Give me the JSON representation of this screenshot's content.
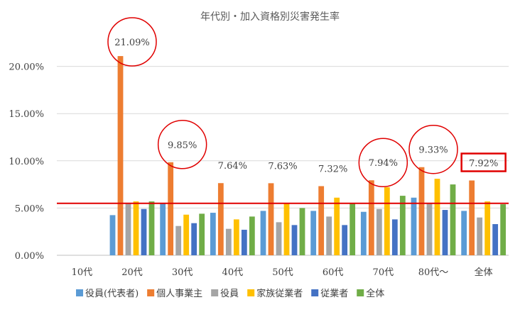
{
  "chart_data": {
    "type": "bar",
    "title": "年代別・加入資格別災害発生率",
    "xlabel": "",
    "ylabel": "",
    "ylim": [
      0,
      0.25
    ],
    "yticks": [
      "0.00%",
      "5.00%",
      "10.00%",
      "15.00%",
      "20.00%"
    ],
    "ytick_values": [
      0,
      0.05,
      0.1,
      0.15,
      0.2
    ],
    "grid": true,
    "legend_position": "bottom",
    "categories": [
      "10代",
      "20代",
      "30代",
      "40代",
      "50代",
      "60代",
      "70代",
      "80代～",
      "全体"
    ],
    "series": [
      {
        "name": "役員(代表者)",
        "color": "#5B9BD5",
        "values": [
          0,
          0.0425,
          0.055,
          0.045,
          0.047,
          0.047,
          0.046,
          0.061,
          0.047
        ]
      },
      {
        "name": "個人事業主",
        "color": "#ED7D31",
        "values": [
          0,
          0.2109,
          0.0985,
          0.0764,
          0.0763,
          0.0732,
          0.0794,
          0.0933,
          0.0792
        ]
      },
      {
        "name": "役員",
        "color": "#A5A5A5",
        "values": [
          0,
          0.055,
          0.031,
          0.028,
          0.035,
          0.041,
          0.049,
          0.055,
          0.04
        ]
      },
      {
        "name": "家族従業者",
        "color": "#FFC000",
        "values": [
          0,
          0.057,
          0.043,
          0.038,
          0.055,
          0.061,
          0.072,
          0.081,
          0.057
        ]
      },
      {
        "name": "従業者",
        "color": "#4472C4",
        "values": [
          0,
          0.049,
          0.034,
          0.027,
          0.032,
          0.032,
          0.038,
          0.048,
          0.033
        ]
      },
      {
        "name": "全体",
        "color": "#70AD47",
        "values": [
          0,
          0.057,
          0.044,
          0.041,
          0.05,
          0.055,
          0.063,
          0.075,
          0.054
        ]
      }
    ],
    "reference_line": {
      "value": 0.055,
      "color": "#E00000"
    },
    "annotations": [
      {
        "category_index": 1,
        "text": "21.09%",
        "shape": "circle"
      },
      {
        "category_index": 2,
        "text": "9.85%",
        "shape": "circle"
      },
      {
        "category_index": 3,
        "text": "7.64%",
        "shape": "none"
      },
      {
        "category_index": 4,
        "text": "7.63%",
        "shape": "none"
      },
      {
        "category_index": 5,
        "text": "7.32%",
        "shape": "none"
      },
      {
        "category_index": 6,
        "text": "7.94%",
        "shape": "circle"
      },
      {
        "category_index": 7,
        "text": "9.33%",
        "shape": "circle"
      },
      {
        "category_index": 8,
        "text": "7.92%",
        "shape": "box"
      }
    ],
    "annotation_color": "#E00000"
  }
}
